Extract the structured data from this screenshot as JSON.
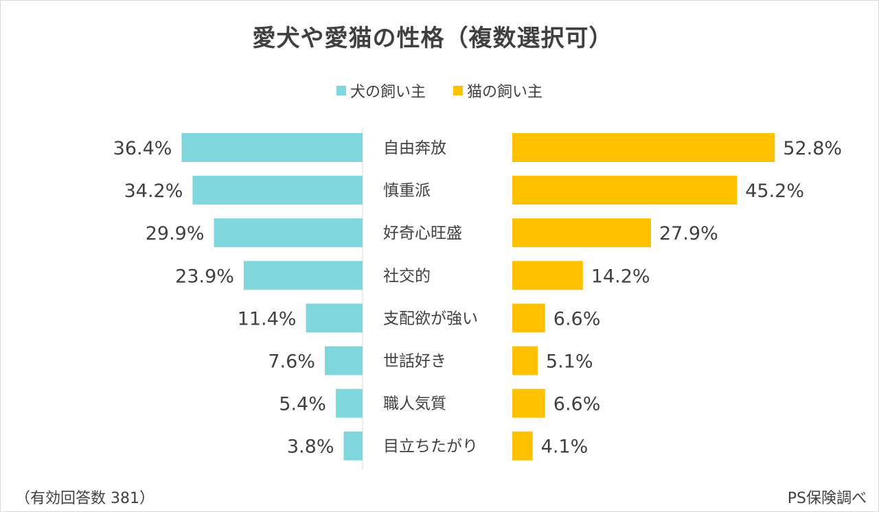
{
  "chart_data": {
    "type": "bar",
    "title": "愛犬や愛猫の性格（複数選択可）",
    "categories": [
      "自由奔放",
      "慎重派",
      "好奇心旺盛",
      "社交的",
      "支配欲が強い",
      "世話好き",
      "職人気質",
      "目立ちたがり"
    ],
    "series": [
      {
        "name": "犬の飼い主",
        "color": "#7fd6dc",
        "values": [
          36.4,
          34.2,
          29.9,
          23.9,
          11.4,
          7.6,
          5.4,
          3.8
        ]
      },
      {
        "name": "猫の飼い主",
        "color": "#ffc000",
        "values": [
          52.8,
          45.2,
          27.9,
          14.2,
          6.6,
          5.1,
          6.6,
          4.1
        ]
      }
    ],
    "value_suffix": "%",
    "grid": false,
    "legend_position": "top",
    "footnote_left": "（有効回答数 381）",
    "footnote_right": "PS保険調べ"
  }
}
